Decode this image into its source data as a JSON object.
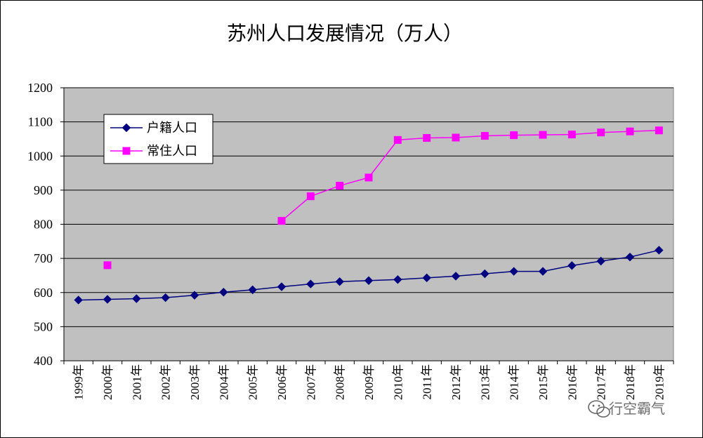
{
  "chart_data": {
    "type": "line",
    "title": "苏州人口发展情况（万人）",
    "xlabel": "",
    "ylabel": "",
    "ylim": [
      400,
      1200
    ],
    "yticks": [
      "400",
      "500",
      "600",
      "700",
      "800",
      "900",
      "1000",
      "1100",
      "1200"
    ],
    "categories": [
      "1999年",
      "2000年",
      "2001年",
      "2002年",
      "2003年",
      "2004年",
      "2005年",
      "2006年",
      "2007年",
      "2008年",
      "2009年",
      "2010年",
      "2011年",
      "2012年",
      "2013年",
      "2014年",
      "2015年",
      "2016年",
      "2017年",
      "2018年",
      "2019年"
    ],
    "grid": true,
    "legend_position": "top-left",
    "plot_background": "#c0c0c0",
    "series": [
      {
        "name": "户籍人口",
        "color": "#000080",
        "marker": "diamond",
        "values": [
          578,
          580,
          582,
          585,
          592,
          601,
          608,
          617,
          625,
          632,
          635,
          638,
          643,
          648,
          655,
          662,
          662,
          679,
          692,
          704,
          724
        ]
      },
      {
        "name": "常住人口",
        "color": "#ff00ff",
        "marker": "square",
        "values": [
          null,
          680,
          null,
          null,
          null,
          null,
          null,
          810,
          882,
          913,
          937,
          1047,
          1053,
          1054,
          1059,
          1061,
          1062,
          1063,
          1069,
          1072,
          1075
        ]
      }
    ]
  },
  "watermark": {
    "icon": "wechat-icon",
    "text": "行空霸气"
  }
}
